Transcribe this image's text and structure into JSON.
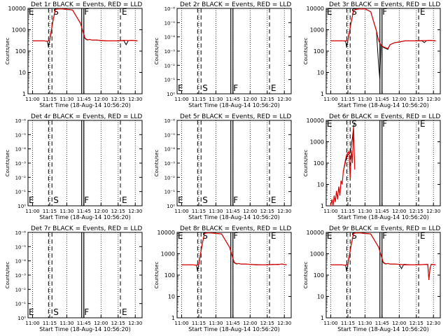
{
  "colors": {
    "events": "#000000",
    "lld": "#e00000",
    "background": "#ffffff"
  },
  "x_tick_labels": [
    "11:00",
    "11:15",
    "11:30",
    "11:45",
    "12:00",
    "12:15",
    "12:30"
  ],
  "xlabel": "Start Time (18-Aug-14 10:56:20)",
  "ylabel": "Counts/sec",
  "marker_labels": [
    "E",
    "S",
    "F",
    "E"
  ],
  "log_ticks": [
    "1",
    "10",
    "100",
    "1000",
    "10000"
  ],
  "exp_ticks": [
    "10⁰",
    "10⁻¹",
    "10⁻²",
    "10⁻³",
    "10⁻⁴",
    "10⁻⁵",
    "10⁻⁶"
  ],
  "chart_data": [
    {
      "type": "line",
      "title": "Det 1r BLACK = Events, RED = LLD",
      "yscale": "log",
      "ylim": [
        1,
        10000
      ],
      "marker_times": [
        674,
        677,
        704,
        737
      ],
      "series": [
        {
          "color": "black",
          "x": [
            660,
            670,
            673,
            674,
            675,
            678,
            680,
            682,
            685,
            690,
            695,
            702,
            706,
            708,
            710,
            712,
            716,
            720,
            725,
            730,
            735,
            740,
            742,
            744,
            747,
            752
          ],
          "y": [
            300,
            300,
            290,
            150,
            320,
            3000,
            9000,
            9500,
            9500,
            9000,
            8500,
            2000,
            380,
            330,
            350,
            330,
            330,
            310,
            300,
            300,
            300,
            310,
            200,
            310,
            320,
            300
          ]
        },
        {
          "color": "red",
          "x": [
            660,
            670,
            673,
            675,
            678,
            680,
            682,
            685,
            690,
            695,
            702,
            706,
            708,
            710,
            712,
            716,
            720,
            725,
            730,
            735,
            740,
            744,
            747,
            752
          ],
          "y": [
            300,
            300,
            290,
            310,
            2800,
            8800,
            9500,
            9500,
            9000,
            8500,
            2000,
            400,
            340,
            350,
            330,
            330,
            320,
            300,
            300,
            300,
            320,
            310,
            320,
            300
          ]
        }
      ]
    },
    {
      "type": "line",
      "title": "Det 2r BLACK = Events, RED = LLD",
      "yscale": "log",
      "ylim": [
        1e-06,
        1
      ],
      "marker_times": [
        674,
        677,
        704,
        737
      ],
      "series": []
    },
    {
      "type": "line",
      "title": "Det 3r BLACK = Events, RED = LLD",
      "yscale": "log",
      "ylim": [
        1,
        10000
      ],
      "marker_times": [
        674,
        677,
        704,
        737
      ],
      "series": [
        {
          "color": "black",
          "x": [
            660,
            670,
            673,
            674,
            675,
            678,
            680,
            682,
            685,
            690,
            695,
            698,
            700,
            702,
            703,
            704,
            706,
            710,
            712,
            716,
            720,
            725,
            730,
            735,
            740,
            742,
            744,
            747,
            752
          ],
          "y": [
            300,
            300,
            290,
            150,
            320,
            2500,
            8000,
            9000,
            9500,
            9500,
            7000,
            2000,
            900,
            20,
            5,
            200,
            150,
            120,
            200,
            250,
            260,
            300,
            300,
            300,
            300,
            250,
            310,
            320,
            300
          ]
        },
        {
          "color": "red",
          "x": [
            660,
            670,
            673,
            675,
            678,
            680,
            682,
            685,
            690,
            695,
            698,
            700,
            702,
            704,
            706,
            710,
            712,
            716,
            720,
            725,
            730,
            735,
            740,
            744,
            747,
            752
          ],
          "y": [
            300,
            300,
            300,
            310,
            2500,
            8000,
            9000,
            9500,
            9500,
            7000,
            2000,
            900,
            300,
            200,
            160,
            130,
            200,
            250,
            270,
            300,
            300,
            300,
            310,
            310,
            320,
            300
          ]
        }
      ]
    },
    {
      "type": "line",
      "title": "Det 4r BLACK = Events, RED = LLD",
      "yscale": "log",
      "ylim": [
        1e-06,
        1
      ],
      "marker_times": [
        674,
        677,
        704,
        737
      ],
      "series": []
    },
    {
      "type": "line",
      "title": "Det 5r BLACK = Events, RED = LLD",
      "yscale": "log",
      "ylim": [
        1e-06,
        1
      ],
      "marker_times": [
        674,
        677,
        704,
        737
      ],
      "series": []
    },
    {
      "type": "line",
      "title": "Det 6r BLACK = Events, RED = LLD",
      "yscale": "log",
      "ylim": [
        1,
        10000
      ],
      "marker_times": [
        674,
        677,
        704,
        737
      ],
      "series": [
        {
          "color": "black",
          "x": [
            671,
            673,
            675,
            677,
            679,
            680,
            681
          ],
          "y": [
            40,
            120,
            250,
            300,
            1500,
            5000,
            8000
          ]
        },
        {
          "color": "red",
          "x": [
            660,
            661,
            662,
            663,
            664,
            665,
            666,
            667,
            668,
            669,
            670,
            671,
            672,
            673,
            674,
            675,
            676,
            677,
            678,
            679,
            680,
            681
          ],
          "y": [
            1,
            2,
            1,
            3,
            1.5,
            5,
            2,
            8,
            3,
            15,
            10,
            40,
            80,
            150,
            250,
            300,
            350,
            20,
            400,
            100,
            5000,
            50
          ]
        }
      ]
    },
    {
      "type": "line",
      "title": "Det 7r BLACK = Events, RED = LLD",
      "yscale": "log",
      "ylim": [
        1e-06,
        1
      ],
      "marker_times": [
        674,
        677,
        704,
        737
      ],
      "series": []
    },
    {
      "type": "line",
      "title": "Det 8r BLACK = Events, RED = LLD",
      "yscale": "log",
      "ylim": [
        1,
        10000
      ],
      "marker_times": [
        674,
        677,
        704,
        737
      ],
      "series": [
        {
          "color": "black",
          "x": [
            660,
            670,
            673,
            674,
            675,
            678,
            680,
            682,
            685,
            690,
            695,
            702,
            706,
            708,
            710,
            712,
            716,
            720,
            725,
            730,
            735,
            740,
            744,
            748,
            752
          ],
          "y": [
            300,
            300,
            290,
            150,
            320,
            3000,
            9000,
            9500,
            9500,
            9000,
            8500,
            2000,
            380,
            330,
            350,
            330,
            330,
            320,
            310,
            300,
            300,
            310,
            320,
            330,
            300
          ]
        },
        {
          "color": "red",
          "x": [
            660,
            670,
            673,
            675,
            678,
            680,
            682,
            685,
            690,
            695,
            702,
            706,
            708,
            710,
            712,
            716,
            720,
            725,
            730,
            735,
            740,
            744,
            748,
            752
          ],
          "y": [
            300,
            300,
            290,
            310,
            2800,
            8800,
            9500,
            9500,
            9000,
            8500,
            2000,
            400,
            340,
            350,
            330,
            330,
            320,
            300,
            300,
            300,
            320,
            310,
            330,
            300
          ]
        }
      ]
    },
    {
      "type": "line",
      "title": "Det 9r BLACK = Events, RED = LLD",
      "yscale": "log",
      "ylim": [
        1,
        10000
      ],
      "marker_times": [
        674,
        677,
        704,
        737
      ],
      "series": [
        {
          "color": "black",
          "x": [
            660,
            670,
            673,
            674,
            675,
            678,
            680,
            682,
            685,
            690,
            695,
            702,
            706,
            708,
            710,
            712,
            716,
            720,
            722,
            724,
            730,
            735,
            740,
            745,
            746,
            747,
            748,
            752
          ],
          "y": [
            300,
            300,
            290,
            150,
            320,
            3000,
            9000,
            9500,
            9500,
            9000,
            8500,
            2000,
            380,
            330,
            350,
            330,
            330,
            320,
            200,
            320,
            300,
            300,
            310,
            320,
            60,
            200,
            320,
            300
          ]
        },
        {
          "color": "red",
          "x": [
            660,
            670,
            673,
            675,
            678,
            680,
            682,
            685,
            690,
            695,
            702,
            706,
            708,
            710,
            712,
            716,
            720,
            725,
            730,
            735,
            740,
            745,
            746,
            747,
            748,
            752
          ],
          "y": [
            300,
            300,
            290,
            310,
            2800,
            8800,
            9500,
            9500,
            9000,
            8500,
            2000,
            400,
            340,
            350,
            330,
            330,
            320,
            300,
            300,
            300,
            310,
            320,
            60,
            200,
            320,
            300
          ]
        }
      ]
    }
  ]
}
